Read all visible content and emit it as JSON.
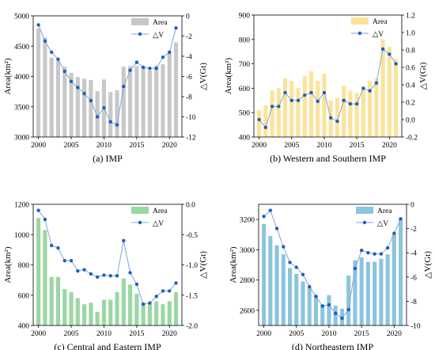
{
  "panels": [
    {
      "caption": "(a) IMP",
      "bar_color": "#c8c8c8",
      "line_color": "#7fa6d9",
      "marker_color": "#1f5fbf",
      "legend": {
        "area_label": "Area",
        "dv_label": "△V"
      },
      "y_left_label": "Area(km²)",
      "y_right_label": "△V(Gt)",
      "chart_data": {
        "type": "bar",
        "x": [
          2000,
          2001,
          2002,
          2003,
          2004,
          2005,
          2006,
          2007,
          2008,
          2009,
          2010,
          2011,
          2012,
          2013,
          2014,
          2015,
          2016,
          2017,
          2018,
          2019,
          2020,
          2021
        ],
        "series": [
          {
            "name": "Area",
            "axis": "left",
            "values": [
              4790,
              4640,
              4310,
              4260,
              4160,
              4060,
              3990,
              3960,
              3940,
              3760,
              3950,
              3740,
              3770,
              4160,
              4170,
              4170,
              4170,
              4100,
              4180,
              4200,
              4390,
              4560
            ]
          },
          {
            "name": "△V",
            "axis": "right",
            "values": [
              -0.9,
              -2.5,
              -3.6,
              -4.3,
              -5.5,
              -6.5,
              -7.1,
              -7.7,
              -8.4,
              -10.0,
              -9.1,
              -10.5,
              -10.8,
              -7.0,
              -5.4,
              -4.6,
              -5.1,
              -5.2,
              -5.2,
              -4.1,
              -3.6,
              -1.2
            ]
          }
        ],
        "xlim": [
          1999.2,
          2021.9
        ],
        "ylim_left": [
          3000,
          5000
        ],
        "ylim_right": [
          -12,
          0
        ],
        "x_ticks": [
          2000,
          2005,
          2010,
          2015,
          2020
        ],
        "y_left_ticks": [
          3000,
          3500,
          4000,
          4500,
          5000
        ],
        "y_right_ticks": [
          0,
          -2,
          -4,
          -6,
          -8,
          -10,
          -12
        ],
        "y_left_tick_labels": [
          "3000",
          "3500",
          "4000",
          "4500",
          "5000"
        ],
        "y_right_tick_labels": [
          "0",
          "-2",
          "-4",
          "-6",
          "-8",
          "-10",
          "-12"
        ]
      }
    },
    {
      "caption": "(b) Western and Southern IMP",
      "bar_color": "#fbe39a",
      "line_color": "#7fa6d9",
      "marker_color": "#1f5fbf",
      "legend": {
        "area_label": "Area",
        "dv_label": "△V"
      },
      "y_left_label": "Area(km²)",
      "y_right_label": "△V(Gt)",
      "chart_data": {
        "type": "bar",
        "x": [
          2000,
          2001,
          2002,
          2003,
          2004,
          2005,
          2006,
          2007,
          2008,
          2009,
          2010,
          2011,
          2012,
          2013,
          2014,
          2015,
          2016,
          2017,
          2018,
          2019,
          2020,
          2021
        ],
        "series": [
          {
            "name": "Area",
            "axis": "left",
            "values": [
              510,
              530,
              590,
              600,
              640,
              630,
              600,
              650,
              670,
              630,
              660,
              550,
              560,
              610,
              590,
              580,
              600,
              630,
              640,
              800,
              770,
              720
            ]
          },
          {
            "name": "△V",
            "axis": "right",
            "values": [
              0.0,
              -0.09,
              0.15,
              0.15,
              0.31,
              0.22,
              0.22,
              0.28,
              0.31,
              0.21,
              0.31,
              0.02,
              -0.02,
              0.22,
              0.18,
              0.18,
              0.36,
              0.33,
              0.42,
              0.81,
              0.75,
              0.64
            ]
          }
        ],
        "xlim": [
          1999.2,
          2021.9
        ],
        "ylim_left": [
          400,
          900
        ],
        "ylim_right": [
          -0.2,
          1.2
        ],
        "x_ticks": [
          2000,
          2005,
          2010,
          2015,
          2020
        ],
        "y_left_ticks": [
          400,
          500,
          600,
          700,
          800,
          900
        ],
        "y_right_ticks": [
          -0.2,
          0.0,
          0.2,
          0.4,
          0.6,
          0.8,
          1.0,
          1.2
        ],
        "y_left_tick_labels": [
          "400",
          "500",
          "600",
          "700",
          "800",
          "900"
        ],
        "y_right_tick_labels": [
          "-0.2",
          "0.0",
          "0.2",
          "0.4",
          "0.6",
          "0.8",
          "1.0",
          "1.2"
        ]
      }
    },
    {
      "caption": "(c) Central and Eastern IMP",
      "bar_color": "#9bd7a4",
      "line_color": "#7fa6d9",
      "marker_color": "#1f5fbf",
      "legend": {
        "area_label": "Area",
        "dv_label": "△V"
      },
      "y_left_label": "Area(km²)",
      "y_right_label": "△V(Gt)",
      "chart_data": {
        "type": "bar",
        "x": [
          2000,
          2001,
          2002,
          2003,
          2004,
          2005,
          2006,
          2007,
          2008,
          2009,
          2010,
          2011,
          2012,
          2013,
          2014,
          2015,
          2016,
          2017,
          2018,
          2019,
          2020,
          2021
        ],
        "series": [
          {
            "name": "Area",
            "axis": "left",
            "values": [
              1110,
              1030,
              720,
              720,
              640,
              620,
              580,
              540,
              550,
              490,
              570,
              570,
              620,
              710,
              670,
              610,
              550,
              540,
              560,
              540,
              560,
              620
            ]
          },
          {
            "name": "△V",
            "axis": "right",
            "values": [
              -0.1,
              -0.25,
              -0.68,
              -0.72,
              -0.93,
              -0.93,
              -1.1,
              -1.08,
              -1.15,
              -1.2,
              -1.17,
              -1.18,
              -1.18,
              -0.6,
              -1.13,
              -1.32,
              -1.65,
              -1.63,
              -1.52,
              -1.43,
              -1.43,
              -1.3
            ]
          }
        ],
        "xlim": [
          1999.2,
          2021.9
        ],
        "ylim_left": [
          400,
          1200
        ],
        "ylim_right": [
          -2.0,
          0.0
        ],
        "x_ticks": [
          2000,
          2005,
          2010,
          2015,
          2020
        ],
        "y_left_ticks": [
          400,
          600,
          800,
          1000,
          1200
        ],
        "y_right_ticks": [
          0.0,
          -0.5,
          -1.0,
          -1.5,
          -2.0
        ],
        "y_left_tick_labels": [
          "400",
          "600",
          "800",
          "1000",
          "1200"
        ],
        "y_right_tick_labels": [
          "0.0",
          "-0.5",
          "-1.0",
          "-1.5",
          "-2.0"
        ]
      }
    },
    {
      "caption": "(d) Northeastern IMP",
      "bar_color": "#8cc4dd",
      "line_color": "#7fa6d9",
      "marker_color": "#1f5fbf",
      "legend": {
        "area_label": "Area",
        "dv_label": "△V"
      },
      "y_left_label": "Area(km²)",
      "y_right_label": "△V(Gt)",
      "chart_data": {
        "type": "bar",
        "x": [
          2000,
          2001,
          2002,
          2003,
          2004,
          2005,
          2006,
          2007,
          2008,
          2009,
          2010,
          2011,
          2012,
          2013,
          2014,
          2015,
          2016,
          2017,
          2018,
          2019,
          2020,
          2021
        ],
        "series": [
          {
            "name": "Area",
            "axis": "left",
            "values": [
              3170,
              3090,
              3030,
              2970,
              2880,
              2840,
              2790,
              2750,
              2700,
              2640,
              2700,
              2630,
              2610,
              2830,
              2930,
              2950,
              2920,
              2920,
              2940,
              2970,
              3100,
              3200
            ]
          },
          {
            "name": "△V",
            "axis": "right",
            "values": [
              -1.0,
              -0.5,
              -2.0,
              -3.5,
              -4.8,
              -5.2,
              -5.8,
              -6.8,
              -7.6,
              -8.4,
              -8.3,
              -9.0,
              -9.4,
              -8.7,
              -5.3,
              -3.8,
              -4.0,
              -4.1,
              -4.1,
              -3.6,
              -2.4,
              -1.2
            ]
          }
        ],
        "xlim": [
          1999.2,
          2021.9
        ],
        "ylim_left": [
          2500,
          3300
        ],
        "ylim_right": [
          -10,
          0
        ],
        "x_ticks": [
          2000,
          2005,
          2010,
          2015,
          2020
        ],
        "y_left_ticks": [
          2600,
          2800,
          3000,
          3200
        ],
        "y_right_ticks": [
          0,
          -2,
          -4,
          -6,
          -8,
          -10
        ],
        "y_left_tick_labels": [
          "2600",
          "2800",
          "3000",
          "3200"
        ],
        "y_right_tick_labels": [
          "0",
          "-2",
          "-4",
          "-6",
          "-8",
          "-10"
        ]
      }
    }
  ]
}
